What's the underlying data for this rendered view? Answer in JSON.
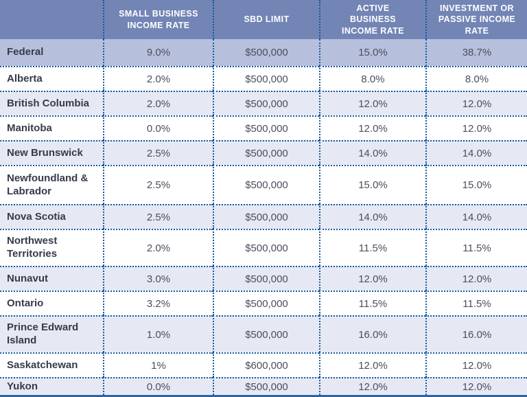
{
  "colors": {
    "header_bg": "#7285b5",
    "federal_row_bg": "#b6c0dc",
    "tint_row_bg": "#e6e9f3",
    "white_row_bg": "#ffffff",
    "dotted_border": "#1459a0",
    "bottom_rule": "#2f639c",
    "header_text": "#ffffff",
    "row_label_text": "#363a4b",
    "value_text": "#4b4e5c"
  },
  "table": {
    "header": {
      "columns": [
        {
          "key": "jurisdiction",
          "lines": [
            ""
          ]
        },
        {
          "key": "small_business_income_rate",
          "lines": [
            "SMALL BUSINESS",
            "INCOME RATE"
          ]
        },
        {
          "key": "sbd_limit",
          "lines": [
            "SBD LIMIT"
          ]
        },
        {
          "key": "active_business_income_rate",
          "lines": [
            "ACTIVE",
            "BUSINESS",
            "INCOME RATE"
          ]
        },
        {
          "key": "investment_or_passive_income_rate",
          "lines": [
            "INVESTMENT OR",
            "PASSIVE INCOME",
            "RATE"
          ]
        }
      ]
    },
    "rows": [
      {
        "jurisdiction": "Federal",
        "small_business_income_rate": "9.0%",
        "sbd_limit": "$500,000",
        "active_business_income_rate": "15.0%",
        "investment_or_passive_income_rate": "38.7%"
      },
      {
        "jurisdiction": "Alberta",
        "small_business_income_rate": "2.0%",
        "sbd_limit": "$500,000",
        "active_business_income_rate": "8.0%",
        "investment_or_passive_income_rate": "8.0%"
      },
      {
        "jurisdiction": "British Columbia",
        "small_business_income_rate": "2.0%",
        "sbd_limit": "$500,000",
        "active_business_income_rate": "12.0%",
        "investment_or_passive_income_rate": "12.0%"
      },
      {
        "jurisdiction": "Manitoba",
        "small_business_income_rate": "0.0%",
        "sbd_limit": "$500,000",
        "active_business_income_rate": "12.0%",
        "investment_or_passive_income_rate": "12.0%"
      },
      {
        "jurisdiction": "New Brunswick",
        "small_business_income_rate": "2.5%",
        "sbd_limit": "$500,000",
        "active_business_income_rate": "14.0%",
        "investment_or_passive_income_rate": "14.0%"
      },
      {
        "jurisdiction": "Newfoundland & Labrador",
        "small_business_income_rate": "2.5%",
        "sbd_limit": "$500,000",
        "active_business_income_rate": "15.0%",
        "investment_or_passive_income_rate": "15.0%"
      },
      {
        "jurisdiction": "Nova Scotia",
        "small_business_income_rate": "2.5%",
        "sbd_limit": "$500,000",
        "active_business_income_rate": "14.0%",
        "investment_or_passive_income_rate": "14.0%"
      },
      {
        "jurisdiction": "Northwest Territories",
        "small_business_income_rate": "2.0%",
        "sbd_limit": "$500,000",
        "active_business_income_rate": "11.5%",
        "investment_or_passive_income_rate": "11.5%"
      },
      {
        "jurisdiction": "Nunavut",
        "small_business_income_rate": "3.0%",
        "sbd_limit": "$500,000",
        "active_business_income_rate": "12.0%",
        "investment_or_passive_income_rate": "12.0%"
      },
      {
        "jurisdiction": "Ontario",
        "small_business_income_rate": "3.2%",
        "sbd_limit": "$500,000",
        "active_business_income_rate": "11.5%",
        "investment_or_passive_income_rate": "11.5%"
      },
      {
        "jurisdiction": "Prince Edward Island",
        "small_business_income_rate": "1.0%",
        "sbd_limit": "$500,000",
        "active_business_income_rate": "16.0%",
        "investment_or_passive_income_rate": "16.0%"
      },
      {
        "jurisdiction": "Saskatchewan",
        "small_business_income_rate": "1%",
        "sbd_limit": "$600,000",
        "active_business_income_rate": "12.0%",
        "investment_or_passive_income_rate": "12.0%"
      },
      {
        "jurisdiction": "Yukon",
        "small_business_income_rate": "0.0%",
        "sbd_limit": "$500,000",
        "active_business_income_rate": "12.0%",
        "investment_or_passive_income_rate": "12.0%"
      }
    ]
  }
}
